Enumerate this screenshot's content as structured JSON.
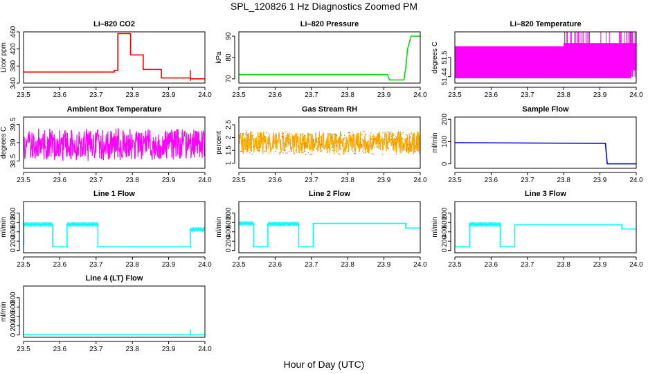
{
  "figure": {
    "title": "SPL_120826  1 Hz Diagnostics Zoomed PM",
    "xlabel": "Hour of Day (UTC)"
  },
  "chart_data": [
    {
      "type": "line",
      "title": "Li–820 CO2",
      "ylabel": "Licor ppm",
      "color": "#ff0000",
      "xlim": [
        23.5,
        24.0
      ],
      "ylim": [
        340,
        460
      ],
      "yticks": [
        340,
        380,
        420,
        460
      ],
      "xticks": [
        23.5,
        23.6,
        23.7,
        23.8,
        23.9,
        24.0
      ],
      "series": [
        {
          "name": "CO2",
          "x": [
            23.5,
            23.75,
            23.75,
            23.76,
            23.76,
            23.795,
            23.795,
            23.83,
            23.83,
            23.88,
            23.88,
            23.96,
            23.96,
            24.0
          ],
          "y": [
            366,
            366,
            370,
            370,
            456,
            456,
            406,
            406,
            372,
            372,
            352,
            352,
            350,
            350
          ]
        }
      ],
      "spikes": [
        {
          "x": 23.96,
          "y0": 345,
          "y1": 370
        }
      ]
    },
    {
      "type": "line",
      "title": "Li–820 Pressure",
      "ylabel": "kPa",
      "color": "#00dd00",
      "xlim": [
        23.5,
        24.0
      ],
      "ylim": [
        68,
        92
      ],
      "yticks": [
        70,
        80,
        90
      ],
      "xticks": [
        23.5,
        23.6,
        23.7,
        23.8,
        23.9,
        24.0
      ],
      "series": [
        {
          "name": "Pressure",
          "x": [
            23.5,
            23.91,
            23.915,
            23.955,
            23.96,
            23.965,
            23.975,
            24.0
          ],
          "y": [
            72,
            72,
            69.5,
            69.5,
            75,
            84,
            90,
            90
          ]
        }
      ]
    },
    {
      "type": "band",
      "title": "Li–820 Temperature",
      "ylabel": "degrees C",
      "color": "#ff00ff",
      "xlim": [
        23.5,
        24.0
      ],
      "ylim": [
        51.42,
        51.58
      ],
      "yticks": [
        51.44,
        51.5
      ],
      "xticks": [
        23.5,
        23.6,
        23.7,
        23.8,
        23.9,
        24.0
      ],
      "bands": [
        {
          "x0": 23.5,
          "x1": 23.985,
          "y0": 51.435,
          "y1": 51.535
        },
        {
          "x0": 23.8,
          "x1": 24.0,
          "y0": 51.46,
          "y1": 51.545
        }
      ]
    },
    {
      "type": "noise",
      "title": "Ambient Box Temperature",
      "ylabel": "degrees C",
      "color": "#ff00ff",
      "xlim": [
        23.5,
        24.0
      ],
      "ylim": [
        38.3,
        39.7
      ],
      "yticks": [
        38.5,
        39.0,
        39.5
      ],
      "xticks": [
        23.5,
        23.6,
        23.7,
        23.8,
        23.9,
        24.0
      ],
      "center": 38.95,
      "amplitude": 0.45
    },
    {
      "type": "noise",
      "title": "Gas Stream RH",
      "ylabel": "percent",
      "color": "#ffaa00",
      "edge_color": "#cc6600",
      "xlim": [
        23.5,
        24.0
      ],
      "ylim": [
        0.8,
        2.8
      ],
      "yticks": [
        1.0,
        1.5,
        2.0,
        2.5
      ],
      "xticks": [
        23.5,
        23.6,
        23.7,
        23.8,
        23.9,
        24.0
      ],
      "center": 1.8,
      "amplitude": 0.45
    },
    {
      "type": "line",
      "title": "Sample Flow",
      "ylabel": "ml/min",
      "color": "#0000cc",
      "xlim": [
        23.5,
        24.0
      ],
      "ylim": [
        -20,
        210
      ],
      "yticks": [
        0,
        100,
        200
      ],
      "xticks": [
        23.5,
        23.6,
        23.7,
        23.8,
        23.9,
        24.0
      ],
      "series": [
        {
          "name": "Sample Flow",
          "x": [
            23.5,
            23.91,
            23.915,
            23.92,
            24.0
          ],
          "y": [
            95,
            92,
            92,
            0,
            0
          ]
        }
      ]
    },
    {
      "type": "line",
      "title": "Line 1 Flow",
      "ylabel": "ml/min",
      "color": "#00ffff",
      "xlim": [
        23.5,
        24.0
      ],
      "ylim": [
        -50,
        1050
      ],
      "yticks": [
        0,
        200,
        400,
        600,
        800
      ],
      "xticks": [
        23.5,
        23.6,
        23.7,
        23.8,
        23.9,
        24.0
      ],
      "series": [
        {
          "name": "Line 1 Flow",
          "x": [
            23.5,
            23.5,
            23.58,
            23.58,
            23.62,
            23.62,
            23.705,
            23.705,
            23.96,
            23.96,
            24.0
          ],
          "y": [
            100,
            560,
            560,
            80,
            80,
            560,
            560,
            80,
            80,
            450,
            450
          ]
        }
      ],
      "noisy": [
        [
          23.5,
          23.58
        ],
        [
          23.62,
          23.705
        ],
        [
          23.96,
          24.0
        ]
      ]
    },
    {
      "type": "line",
      "title": "Line 2 Flow",
      "ylabel": "ml/min",
      "color": "#00ffff",
      "xlim": [
        23.5,
        24.0
      ],
      "ylim": [
        -50,
        1050
      ],
      "yticks": [
        0,
        200,
        400,
        600,
        800
      ],
      "xticks": [
        23.5,
        23.6,
        23.7,
        23.8,
        23.9,
        24.0
      ],
      "series": [
        {
          "name": "Line 2 Flow",
          "x": [
            23.5,
            23.54,
            23.54,
            23.58,
            23.58,
            23.665,
            23.665,
            23.705,
            23.705,
            23.96,
            23.96,
            24.0
          ],
          "y": [
            580,
            580,
            80,
            80,
            570,
            570,
            80,
            80,
            580,
            580,
            480,
            480
          ]
        }
      ],
      "noisy": [
        [
          23.5,
          23.54
        ],
        [
          23.58,
          23.665
        ],
        [
          23.705,
          24.0
        ]
      ]
    },
    {
      "type": "line",
      "title": "Line 3 Flow",
      "ylabel": "ml/min",
      "color": "#00ffff",
      "xlim": [
        23.5,
        24.0
      ],
      "ylim": [
        -50,
        1050
      ],
      "yticks": [
        0,
        200,
        400,
        600,
        800
      ],
      "xticks": [
        23.5,
        23.6,
        23.7,
        23.8,
        23.9,
        24.0
      ],
      "series": [
        {
          "name": "Line 3 Flow",
          "x": [
            23.5,
            23.5,
            23.54,
            23.54,
            23.625,
            23.625,
            23.665,
            23.665,
            23.96,
            23.96,
            24.0
          ],
          "y": [
            530,
            80,
            80,
            560,
            560,
            80,
            80,
            550,
            550,
            460,
            460
          ]
        }
      ],
      "noisy": [
        [
          23.54,
          23.625
        ],
        [
          23.665,
          24.0
        ]
      ]
    },
    {
      "type": "line",
      "title": "Line 4 (LT) Flow",
      "ylabel": "ml/min",
      "color": "#00ffff",
      "xlim": [
        23.5,
        24.0
      ],
      "ylim": [
        -50,
        1050
      ],
      "yticks": [
        0,
        200,
        400,
        600,
        800
      ],
      "xticks": [
        23.5,
        23.6,
        23.7,
        23.8,
        23.9,
        24.0
      ],
      "series": [
        {
          "name": "Line 4 Flow",
          "x": [
            23.5,
            24.0
          ],
          "y": [
            5,
            5
          ]
        }
      ],
      "spikes": [
        {
          "x": 23.96,
          "y0": 5,
          "y1": 120
        }
      ]
    }
  ]
}
